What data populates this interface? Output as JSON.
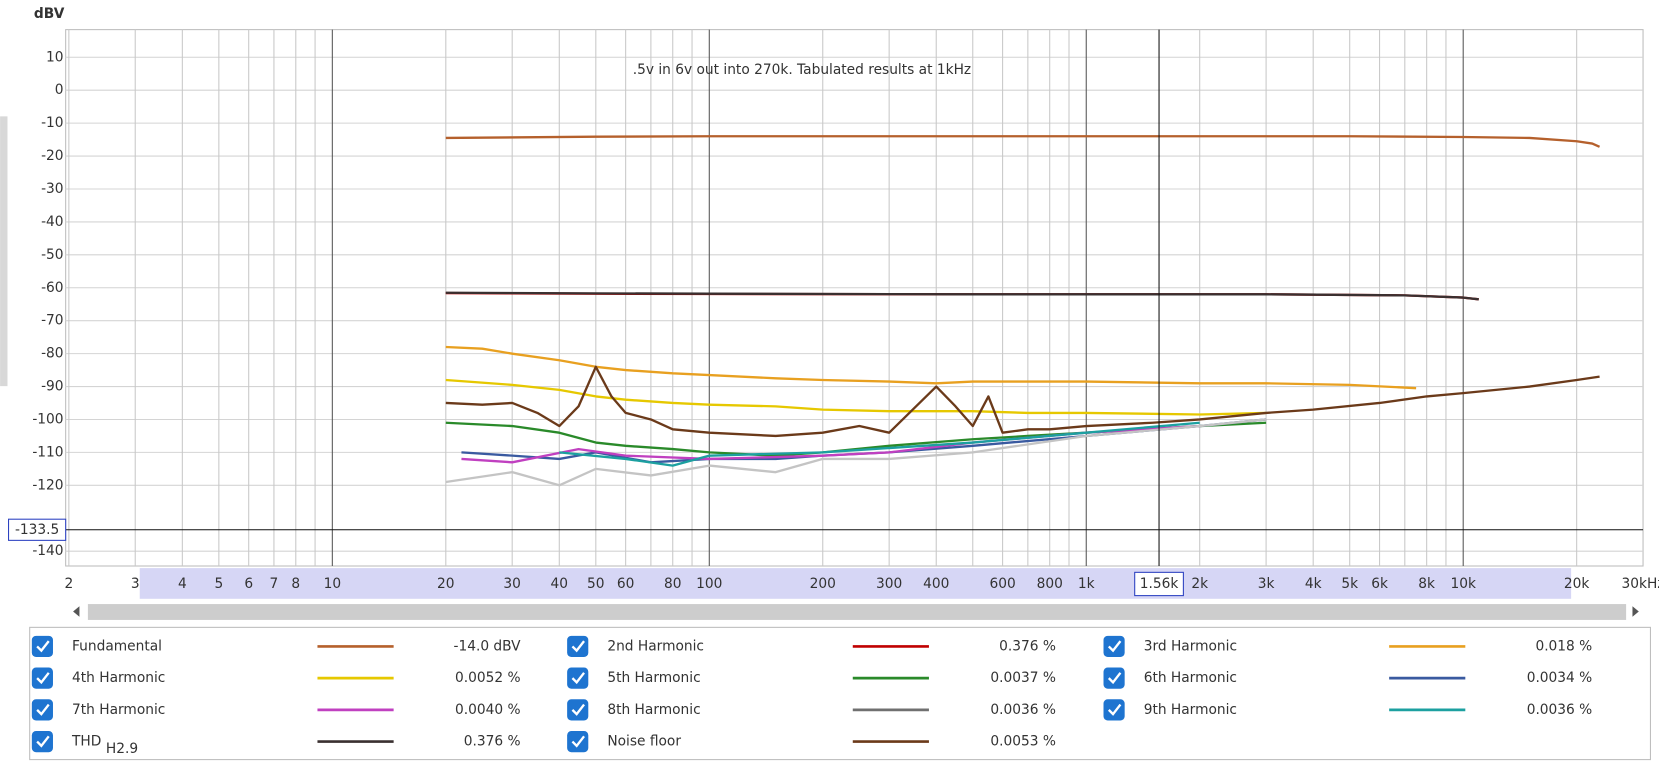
{
  "chart_data": {
    "type": "line",
    "y_label": "dBV",
    "annotation": ".5v in 6v out into 270k. Tabulated results at 1kHz",
    "xscale": "log",
    "xlim": [
      2,
      30000
    ],
    "ylim": [
      -144.5,
      18.4
    ],
    "grid": true,
    "yticks": [
      10,
      0,
      -10,
      -20,
      -30,
      -40,
      -50,
      -60,
      -70,
      -80,
      -90,
      -100,
      -110,
      -120,
      -140
    ],
    "xticks": [
      2,
      3,
      4,
      5,
      6,
      7,
      8,
      10,
      20,
      30,
      40,
      50,
      60,
      80,
      100,
      200,
      300,
      400,
      600,
      800,
      {
        "value": 1000,
        "label": "1k"
      },
      {
        "value": 2000,
        "label": "2k"
      },
      {
        "value": 3000,
        "label": "3k"
      },
      {
        "value": 4000,
        "label": "4k"
      },
      {
        "value": 5000,
        "label": "5k"
      },
      {
        "value": 6000,
        "label": "6k"
      },
      {
        "value": 8000,
        "label": "8k"
      },
      {
        "value": 10000,
        "label": "10k"
      },
      {
        "value": 20000,
        "label": "20k"
      },
      {
        "value": 30000,
        "label": "30kHz"
      }
    ],
    "xminor": [
      9,
      70,
      90,
      500,
      700,
      900,
      7000,
      9000
    ],
    "cursor": {
      "x": {
        "value": 1560,
        "label": "1.56k"
      },
      "y": -133.5
    },
    "series": [
      {
        "name": "Fundamental",
        "color": "#b5602c",
        "text_color": "#a8561e",
        "reading": "-14.0 dBV",
        "x": [
          20,
          50,
          100,
          200,
          500,
          1000,
          2000,
          5000,
          10000,
          15000,
          20000,
          22000,
          23000
        ],
        "values": [
          -14.5,
          -14.1,
          -14,
          -14,
          -14,
          -14,
          -14,
          -14,
          -14.2,
          -14.5,
          -15.5,
          -16.2,
          -17.2
        ]
      },
      {
        "name": "2nd Harmonic",
        "color": "#c00000",
        "text_color": "#c00000",
        "reading": "0.376 %",
        "x": [
          20,
          50,
          100,
          500,
          1000,
          3000,
          7000,
          10000,
          11000
        ],
        "values": [
          -61.6,
          -61.8,
          -61.9,
          -62,
          -62,
          -62,
          -62.3,
          -63,
          -63.5
        ]
      },
      {
        "name": "3rd Harmonic",
        "color": "#e8a020",
        "text_color": "#d99a00",
        "reading": "0.018 %",
        "x": [
          20,
          25,
          30,
          40,
          50,
          60,
          80,
          100,
          150,
          200,
          300,
          400,
          500,
          700,
          1000,
          2000,
          3000,
          5000,
          7500
        ],
        "values": [
          -78,
          -78.5,
          -80,
          -82,
          -84,
          -85,
          -86,
          -86.5,
          -87.5,
          -88,
          -88.5,
          -89,
          -88.5,
          -88.5,
          -88.5,
          -89,
          -89,
          -89.5,
          -90.5
        ]
      },
      {
        "name": "4th Harmonic",
        "color": "#e6c800",
        "text_color": "#d4b400",
        "reading": "0.0052 %",
        "x": [
          20,
          30,
          40,
          50,
          60,
          80,
          100,
          150,
          200,
          300,
          500,
          700,
          1000,
          2000,
          3000
        ],
        "values": [
          -88,
          -89.5,
          -91,
          -93,
          -94,
          -95,
          -95.5,
          -96,
          -97,
          -97.5,
          -97.5,
          -98,
          -98,
          -98.5,
          -98
        ]
      },
      {
        "name": "5th Harmonic",
        "color": "#2a8a2a",
        "text_color": "#1f8a1f",
        "reading": "0.0037 %",
        "x": [
          20,
          30,
          40,
          50,
          60,
          80,
          100,
          150,
          200,
          300,
          500,
          700,
          1000,
          2000,
          3000
        ],
        "values": [
          -101,
          -102,
          -104,
          -107,
          -108,
          -109,
          -110,
          -111,
          -110,
          -108,
          -106,
          -105,
          -104,
          -102,
          -101
        ]
      },
      {
        "name": "6th Harmonic",
        "color": "#3a5aa0",
        "text_color": "#2e5aa8",
        "reading": "0.0034 %",
        "x": [
          22,
          30,
          40,
          50,
          70,
          100,
          150,
          200,
          300,
          500,
          1000,
          2000,
          3000
        ],
        "values": [
          -110,
          -111,
          -112,
          -110,
          -113,
          -112,
          -112,
          -111,
          -110,
          -108,
          -105,
          -102,
          -100
        ]
      },
      {
        "name": "7th Harmonic",
        "color": "#c040c0",
        "text_color": "#b030c0",
        "reading": "0.0040 %",
        "x": [
          22,
          30,
          45,
          60,
          100,
          200,
          300,
          500,
          1000,
          2000
        ],
        "values": [
          -112,
          -113,
          -109,
          -111,
          -112,
          -111,
          -110,
          -107,
          -104,
          -102
        ]
      },
      {
        "name": "8th Harmonic",
        "color": "#c4c4c4",
        "text_color": "#666666",
        "reading": "0.0036 %",
        "x": [
          20,
          30,
          40,
          50,
          70,
          100,
          150,
          200,
          300,
          500,
          1000,
          2000,
          3000
        ],
        "values": [
          -119,
          -116,
          -120,
          -115,
          -117,
          -114,
          -116,
          -112,
          -112,
          -110,
          -105,
          -102,
          -100
        ]
      },
      {
        "name": "9th Harmonic",
        "color": "#1ca0a0",
        "text_color": "#109a9a",
        "reading": "0.0036 %",
        "x": [
          40,
          60,
          80,
          100,
          200,
          500,
          1000,
          2000
        ],
        "values": [
          -110,
          -112,
          -114,
          -111,
          -110,
          -107,
          -104,
          -101
        ]
      },
      {
        "name": "THD",
        "name_sub": "H2.9",
        "color": "#3a3030",
        "text_color": "#222222",
        "reading": "0.376 %",
        "x": [
          20,
          50,
          100,
          500,
          1000,
          3000,
          7000,
          10000,
          11000
        ],
        "values": [
          -61.5,
          -61.7,
          -61.8,
          -62,
          -62,
          -62,
          -62.3,
          -63,
          -63.5
        ]
      },
      {
        "name": "Noise floor",
        "color": "#6b3a1a",
        "text_color": "#6b3a1a",
        "reading": "0.0053 %",
        "x": [
          20,
          25,
          30,
          35,
          40,
          45,
          50,
          55,
          60,
          70,
          80,
          100,
          150,
          200,
          250,
          300,
          400,
          450,
          500,
          550,
          600,
          700,
          800,
          1000,
          1500,
          2000,
          3000,
          4000,
          6000,
          8000,
          10000,
          15000,
          20000,
          23000
        ],
        "values": [
          -95,
          -95.5,
          -95,
          -98,
          -102,
          -96,
          -84,
          -93,
          -98,
          -100,
          -103,
          -104,
          -105,
          -104,
          -102,
          -104,
          -90,
          -96,
          -102,
          -93,
          -104,
          -103,
          -103,
          -102,
          -101,
          -100,
          -98,
          -97,
          -95,
          -93,
          -92,
          -90,
          -88,
          -87
        ]
      }
    ]
  }
}
